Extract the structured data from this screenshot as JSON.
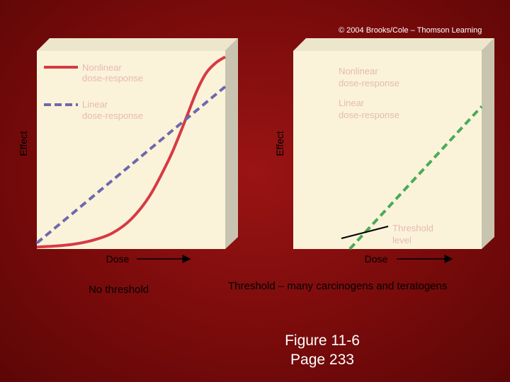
{
  "copyright": "© 2004 Brooks/Cole – Thomson Learning",
  "colors": {
    "nonlinear": "#d63a44",
    "linear": "#6d68ad",
    "threshold_linear": "#4aaa58",
    "plot_bg": "#faf3d9",
    "slide_bg": "#8b0f0f"
  },
  "legend_labels": {
    "nonlinear": "Nonlinear dose-response",
    "linear": "Linear dose-response"
  },
  "captions": {
    "left": "No threshold",
    "right": "Threshold – many carcinogens and teratogens"
  },
  "figure_ref": {
    "line1": "Figure 11-6",
    "line2": "Page 233"
  },
  "chart_data": [
    {
      "type": "line",
      "title": "",
      "xlabel": "Dose",
      "ylabel": "Effect",
      "xlim": [
        0,
        1
      ],
      "ylim": [
        0,
        1
      ],
      "grid": false,
      "legend_placement": "top-left",
      "series": [
        {
          "name": "Nonlinear dose-response",
          "style": "solid",
          "color": "#d63a44",
          "x": [
            0,
            0.1,
            0.2,
            0.3,
            0.4,
            0.5,
            0.6,
            0.7,
            0.75,
            0.8,
            0.85,
            0.9,
            0.95,
            1.0
          ],
          "y": [
            0.01,
            0.015,
            0.025,
            0.045,
            0.08,
            0.15,
            0.27,
            0.45,
            0.56,
            0.68,
            0.8,
            0.89,
            0.94,
            0.97
          ]
        },
        {
          "name": "Linear dose-response",
          "style": "dashed",
          "color": "#6d68ad",
          "x": [
            0,
            1
          ],
          "y": [
            0.03,
            0.82
          ]
        }
      ]
    },
    {
      "type": "line",
      "title": "",
      "xlabel": "Dose",
      "ylabel": "Effect",
      "xlim": [
        0,
        1
      ],
      "ylim": [
        0,
        1
      ],
      "grid": false,
      "legend_placement": "top-left",
      "annotations": [
        "Threshold level"
      ],
      "series": [
        {
          "name": "Linear dose-response",
          "style": "dashed",
          "color": "#4aaa58",
          "x": [
            0.3,
            1.0
          ],
          "y": [
            0.0,
            0.72
          ]
        }
      ]
    }
  ]
}
